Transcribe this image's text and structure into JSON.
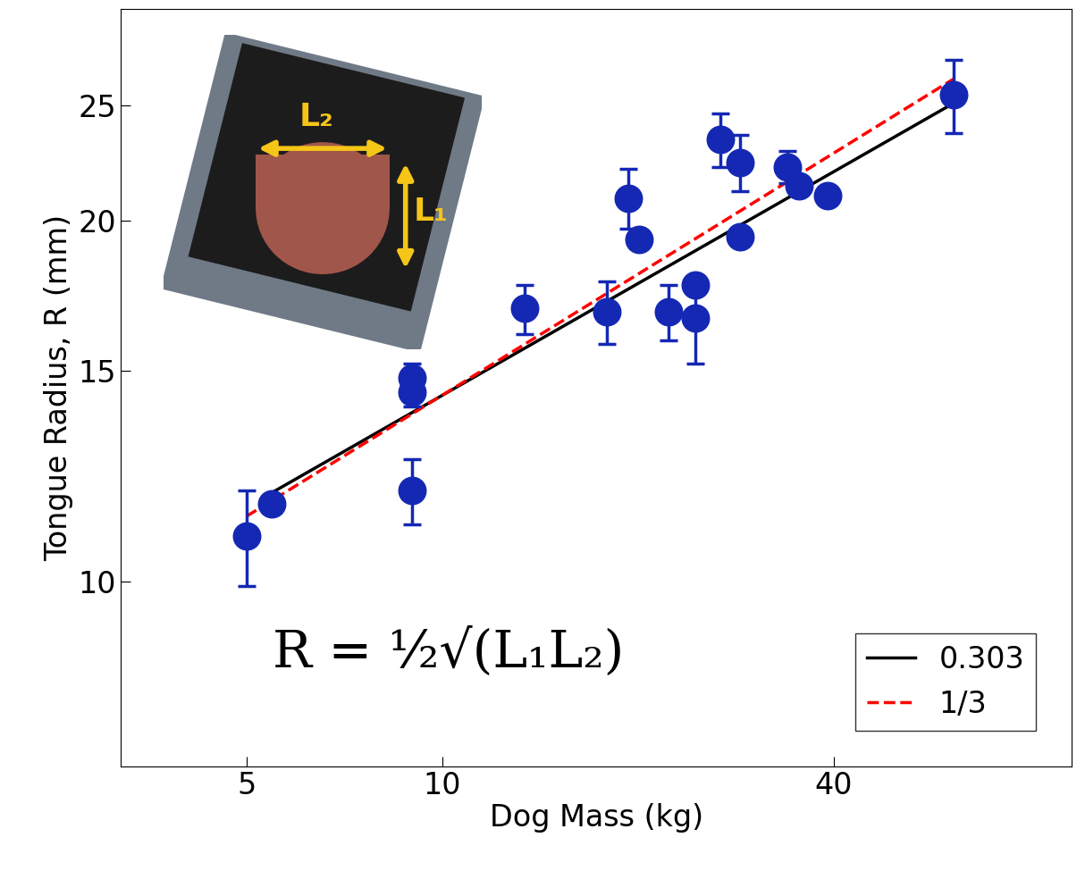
{
  "chart_data": {
    "type": "scatter",
    "x_label": "Dog Mass (kg)",
    "y_label": "Tongue Radius, R (mm)",
    "log": true,
    "grid": false,
    "legend": "lower right",
    "xlim": [
      3.2,
      93
    ],
    "ylim": [
      7.0,
      30.1
    ],
    "xticks": [
      5,
      10,
      40
    ],
    "yticks": [
      10,
      15,
      20,
      25
    ],
    "points": {
      "color": "#1428b4",
      "marker": "circle",
      "x": [
        5.0,
        5.46,
        8.98,
        8.98,
        8.98,
        13.4,
        17.9,
        19.3,
        20.1,
        22.3,
        24.5,
        24.5,
        26.8,
        28.7,
        28.7,
        34.0,
        35.4,
        39.1,
        61.2
      ],
      "values": [
        10.9,
        11.6,
        14.8,
        14.4,
        11.9,
        16.9,
        16.8,
        20.9,
        19.3,
        16.8,
        17.7,
        16.6,
        23.4,
        22.4,
        19.4,
        22.2,
        21.4,
        21.0,
        25.5
      ],
      "errors": [
        1.0,
        null,
        0.4,
        0.4,
        0.75,
        0.8,
        1.0,
        1.2,
        null,
        0.9,
        null,
        1.4,
        1.2,
        1.2,
        null,
        0.7,
        null,
        null,
        1.8
      ]
    },
    "series": [
      {
        "name": "0.303",
        "type": "line",
        "color": "#000000",
        "line_style": "solid",
        "x": [
          5.46,
          61.2
        ],
        "values": [
          11.85,
          25.1
        ]
      },
      {
        "name": "1/3",
        "type": "line",
        "color": "#ff0000",
        "line_style": "dashed",
        "x": [
          5.0,
          61.2
        ],
        "values": [
          11.33,
          26.3
        ]
      }
    ],
    "annotations": {
      "formula": "R = ½√(L₁L₂)",
      "inset_labels": [
        "L₂",
        "L₁"
      ]
    }
  }
}
